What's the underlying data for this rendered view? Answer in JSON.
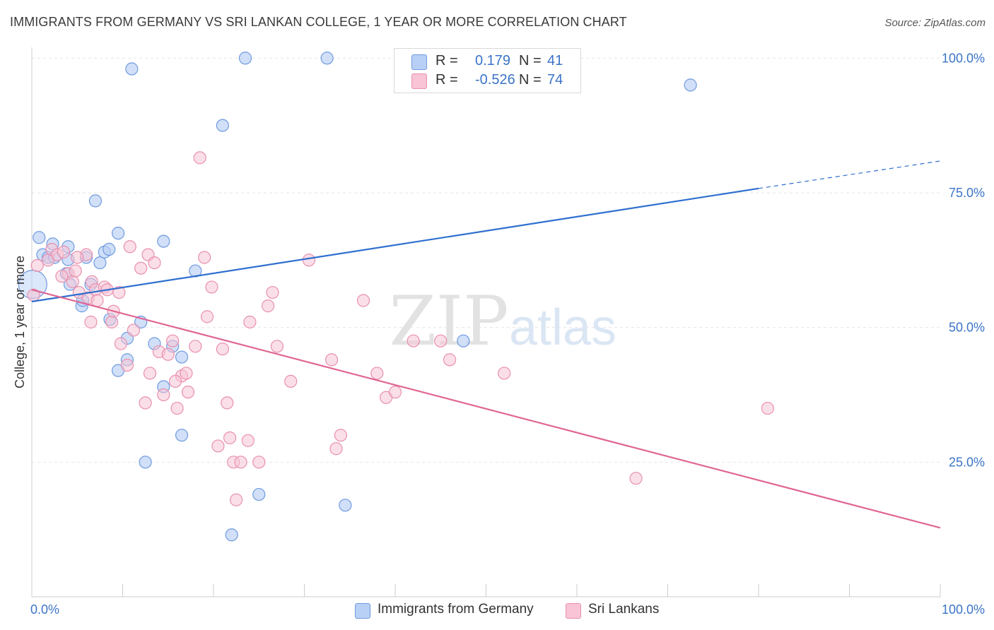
{
  "title": "IMMIGRANTS FROM GERMANY VS SRI LANKAN COLLEGE, 1 YEAR OR MORE CORRELATION CHART",
  "source": "Source: ZipAtlas.com",
  "watermark": {
    "zip": "ZIP",
    "atlas": "atlas"
  },
  "legend_stats": [
    {
      "r_label": "R =",
      "r_value": "0.179",
      "n_label": "N =",
      "n_value": "41"
    },
    {
      "r_label": "R =",
      "r_value": "-0.526",
      "n_label": "N =",
      "n_value": "74"
    }
  ],
  "colors": {
    "blue_fill": "#b8d0f5",
    "blue_stroke": "#6f9ae0",
    "blue_line": "#2f6fcf",
    "pink_fill": "#f8c4d6",
    "pink_stroke": "#e890ae",
    "pink_line": "#e06694",
    "tick_text": "#3b74c7",
    "grid": "#e6e6e6",
    "axis": "#cccccc"
  },
  "chart_data": {
    "type": "scatter",
    "title": "IMMIGRANTS FROM GERMANY VS SRI LANKAN COLLEGE, 1 YEAR OR MORE CORRELATION CHART",
    "xlabel": "",
    "ylabel": "College, 1 year or more",
    "xlim": [
      0,
      100
    ],
    "ylim": [
      0,
      102
    ],
    "x_tick_labels": [
      {
        "value": 0,
        "label": "0.0%"
      },
      {
        "value": 100,
        "label": "100.0%"
      }
    ],
    "y_tick_labels": [
      {
        "value": 25,
        "label": "25.0%"
      },
      {
        "value": 50,
        "label": "50.0%"
      },
      {
        "value": 75,
        "label": "75.0%"
      },
      {
        "value": 100,
        "label": "100.0%"
      }
    ],
    "grid": true,
    "legend": "bottom",
    "series": [
      {
        "name": "Immigrants from Germany",
        "color": "#6f9ae0",
        "r": 0.179,
        "n": 41,
        "trend": {
          "x": [
            0,
            80
          ],
          "y": [
            54.8,
            75.8
          ],
          "dashed_to": [
            100,
            80.9
          ]
        },
        "points": [
          [
            0.1,
            58.0
          ],
          [
            0.8,
            66.7
          ],
          [
            1.2,
            63.5
          ],
          [
            1.8,
            63.0
          ],
          [
            2.3,
            65.5
          ],
          [
            2.5,
            63.0
          ],
          [
            4.0,
            65.0
          ],
          [
            4.0,
            62.6
          ],
          [
            3.8,
            60.0
          ],
          [
            4.2,
            58.0
          ],
          [
            6.0,
            63.0
          ],
          [
            6.5,
            58.0
          ],
          [
            5.5,
            54.0
          ],
          [
            7.5,
            62.0
          ],
          [
            7.0,
            73.5
          ],
          [
            8.0,
            64.0
          ],
          [
            8.6,
            51.5
          ],
          [
            8.5,
            64.5
          ],
          [
            9.5,
            67.5
          ],
          [
            10.5,
            48.0
          ],
          [
            10.5,
            44.0
          ],
          [
            9.5,
            42.0
          ],
          [
            11.0,
            98.0
          ],
          [
            12.0,
            51.0
          ],
          [
            13.5,
            47.0
          ],
          [
            14.5,
            39.0
          ],
          [
            14.5,
            66.0
          ],
          [
            15.5,
            46.5
          ],
          [
            16.5,
            44.5
          ],
          [
            16.5,
            30.0
          ],
          [
            12.5,
            25.0
          ],
          [
            18.0,
            60.5
          ],
          [
            21.0,
            87.5
          ],
          [
            23.5,
            100.0
          ],
          [
            25.0,
            19.0
          ],
          [
            22.0,
            11.5
          ],
          [
            32.5,
            100.0
          ],
          [
            34.5,
            17.0
          ],
          [
            47.5,
            47.5
          ],
          [
            72.5,
            95.0
          ],
          [
            5.6,
            55.0
          ]
        ]
      },
      {
        "name": "Sri Lankans",
        "color": "#e890ae",
        "r": -0.526,
        "n": 74,
        "trend": {
          "x": [
            0,
            100
          ],
          "y": [
            57.0,
            12.8
          ]
        },
        "points": [
          [
            0.2,
            56.0
          ],
          [
            0.6,
            61.5
          ],
          [
            1.8,
            62.5
          ],
          [
            2.2,
            64.5
          ],
          [
            2.8,
            63.5
          ],
          [
            3.5,
            64.0
          ],
          [
            4.0,
            60.0
          ],
          [
            4.5,
            58.5
          ],
          [
            4.8,
            60.5
          ],
          [
            5.2,
            56.5
          ],
          [
            6.0,
            63.5
          ],
          [
            6.2,
            55.5
          ],
          [
            6.5,
            51.0
          ],
          [
            6.6,
            58.5
          ],
          [
            7.0,
            57.0
          ],
          [
            7.2,
            55.0
          ],
          [
            8.0,
            57.5
          ],
          [
            8.3,
            57.0
          ],
          [
            8.8,
            51.0
          ],
          [
            9.6,
            56.5
          ],
          [
            9.8,
            47.0
          ],
          [
            10.5,
            43.0
          ],
          [
            10.8,
            65.0
          ],
          [
            11.2,
            49.5
          ],
          [
            12.0,
            61.0
          ],
          [
            12.5,
            36.0
          ],
          [
            12.8,
            63.5
          ],
          [
            13.0,
            41.5
          ],
          [
            13.5,
            62.0
          ],
          [
            14.0,
            45.5
          ],
          [
            14.5,
            37.5
          ],
          [
            15.0,
            45.0
          ],
          [
            15.5,
            47.5
          ],
          [
            16.0,
            35.0
          ],
          [
            16.5,
            41.0
          ],
          [
            17.0,
            41.5
          ],
          [
            17.2,
            38.0
          ],
          [
            18.0,
            46.5
          ],
          [
            18.5,
            81.5
          ],
          [
            19.0,
            63.0
          ],
          [
            19.3,
            52.0
          ],
          [
            19.8,
            57.5
          ],
          [
            20.5,
            28.0
          ],
          [
            21.0,
            46.0
          ],
          [
            21.5,
            36.0
          ],
          [
            21.8,
            29.5
          ],
          [
            22.2,
            25.0
          ],
          [
            22.5,
            18.0
          ],
          [
            23.0,
            25.0
          ],
          [
            23.8,
            29.0
          ],
          [
            24.0,
            51.0
          ],
          [
            25.0,
            25.0
          ],
          [
            26.0,
            54.0
          ],
          [
            26.5,
            56.5
          ],
          [
            27.0,
            46.5
          ],
          [
            28.5,
            40.0
          ],
          [
            30.5,
            62.5
          ],
          [
            33.0,
            44.0
          ],
          [
            33.5,
            27.5
          ],
          [
            34.0,
            30.0
          ],
          [
            36.5,
            55.0
          ],
          [
            38.0,
            41.5
          ],
          [
            39.0,
            37.0
          ],
          [
            40.0,
            38.0
          ],
          [
            42.0,
            47.5
          ],
          [
            45.0,
            47.5
          ],
          [
            46.0,
            44.0
          ],
          [
            52.0,
            41.5
          ],
          [
            66.5,
            22.0
          ],
          [
            81.0,
            35.0
          ],
          [
            5.0,
            63.0
          ],
          [
            3.3,
            59.5
          ],
          [
            9.0,
            53.0
          ],
          [
            15.8,
            40.0
          ]
        ]
      }
    ]
  }
}
